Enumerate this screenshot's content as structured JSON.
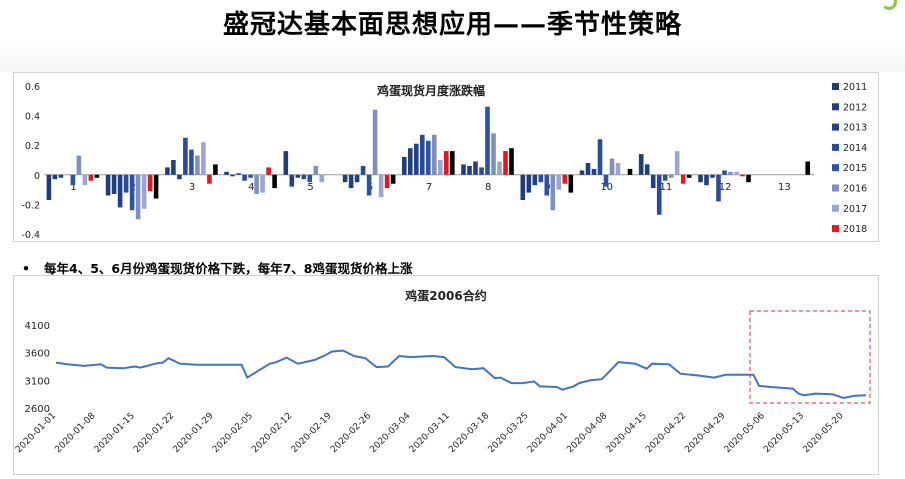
{
  "page": {
    "title": "盛冠达基本面思想应用——季节性策略",
    "bullet": "每年4、5、6月份鸡蛋现货价格下跌，每年7、8鸡蛋现货价格上涨"
  },
  "chart_data": [
    {
      "type": "bar",
      "title": "鸡蛋现货月度涨跌幅",
      "categories": [
        "1",
        "2",
        "3",
        "4",
        "5",
        "6",
        "7",
        "8",
        "9",
        "10",
        "11",
        "12",
        "13"
      ],
      "ylim": [
        -0.4,
        0.6
      ],
      "yticks": [
        "-0.4",
        "-0.2",
        "0",
        "0.2",
        "0.4",
        "0.6"
      ],
      "legend_position": "right",
      "series": [
        {
          "name": "2011",
          "color": "#1f3d7a",
          "values": [
            -0.17,
            -0.14,
            0.05,
            0.02,
            0.16,
            -0.05,
            0.12,
            0.07,
            -0.17,
            0.03,
            0.14,
            -0.05,
            null
          ]
        },
        {
          "name": "2012",
          "color": "#203f80",
          "values": [
            -0.03,
            -0.13,
            0.1,
            -0.01,
            -0.08,
            -0.09,
            0.18,
            0.06,
            -0.12,
            0.08,
            0.07,
            -0.07,
            null
          ]
        },
        {
          "name": "2013",
          "color": "#223f8a",
          "values": [
            -0.02,
            -0.22,
            -0.03,
            0.01,
            -0.02,
            -0.05,
            0.21,
            0.09,
            -0.07,
            0.04,
            -0.09,
            -0.02,
            null
          ]
        },
        {
          "name": "2014",
          "color": "#2a4a9a",
          "values": [
            null,
            -0.12,
            0.25,
            -0.04,
            -0.03,
            0.06,
            0.27,
            0.05,
            -0.05,
            0.24,
            -0.27,
            -0.18,
            null
          ]
        },
        {
          "name": "2015",
          "color": "#2b52a5",
          "values": [
            -0.07,
            -0.24,
            0.17,
            -0.02,
            -0.05,
            -0.14,
            0.23,
            0.46,
            -0.14,
            -0.08,
            -0.04,
            0.03,
            null
          ]
        },
        {
          "name": "2016",
          "color": "#7f8fc0",
          "values": [
            0.13,
            -0.3,
            0.13,
            -0.13,
            0.06,
            0.44,
            0.27,
            0.28,
            -0.24,
            0.11,
            -0.02,
            0.02,
            null
          ]
        },
        {
          "name": "2017",
          "color": "#9aa6cf",
          "values": [
            -0.07,
            -0.23,
            0.22,
            -0.12,
            -0.05,
            -0.15,
            0.1,
            0.09,
            -0.1,
            0.08,
            0.16,
            0.02,
            null
          ]
        },
        {
          "name": "2018",
          "color": "#e8161b",
          "values": [
            -0.04,
            -0.11,
            -0.06,
            0.05,
            null,
            -0.09,
            0.16,
            0.16,
            -0.06,
            null,
            -0.06,
            -0.01,
            null
          ]
        },
        {
          "name": "",
          "color": "#000000",
          "values": [
            -0.02,
            -0.16,
            0.07,
            -0.09,
            null,
            -0.06,
            0.16,
            0.18,
            -0.12,
            0.04,
            -0.02,
            -0.05,
            0.09
          ]
        }
      ]
    },
    {
      "type": "line",
      "title": "鸡蛋2006合约",
      "color": "#4472c4",
      "ylim": [
        2600,
        4100
      ],
      "yticks": [
        "2600",
        "3100",
        "3600",
        "4100"
      ],
      "xticks": [
        "2020-01-01",
        "2020-01-08",
        "2020-01-15",
        "2020-01-22",
        "2020-01-29",
        "2020-02-05",
        "2020-02-12",
        "2020-02-19",
        "2020-02-26",
        "2020-03-04",
        "2020-03-11",
        "2020-03-18",
        "2020-03-25",
        "2020-04-01",
        "2020-04-08",
        "2020-04-15",
        "2020-04-22",
        "2020-04-29",
        "2020-05-06",
        "2020-05-13",
        "2020-05-20"
      ],
      "x_start": "2020-01-01",
      "x_end": "2020-05-24",
      "points": [
        [
          "2020-01-01",
          3420
        ],
        [
          "2020-01-03",
          3390
        ],
        [
          "2020-01-06",
          3360
        ],
        [
          "2020-01-09",
          3390
        ],
        [
          "2020-01-10",
          3330
        ],
        [
          "2020-01-13",
          3320
        ],
        [
          "2020-01-15",
          3350
        ],
        [
          "2020-01-16",
          3330
        ],
        [
          "2020-01-19",
          3410
        ],
        [
          "2020-01-20",
          3420
        ],
        [
          "2020-01-21",
          3500
        ],
        [
          "2020-01-23",
          3400
        ],
        [
          "2020-01-26",
          3380
        ],
        [
          "2020-02-03",
          3380
        ],
        [
          "2020-02-04",
          3150
        ],
        [
          "2020-02-08",
          3400
        ],
        [
          "2020-02-09",
          3420
        ],
        [
          "2020-02-11",
          3510
        ],
        [
          "2020-02-13",
          3400
        ],
        [
          "2020-02-16",
          3470
        ],
        [
          "2020-02-18",
          3560
        ],
        [
          "2020-02-19",
          3620
        ],
        [
          "2020-02-21",
          3640
        ],
        [
          "2020-02-23",
          3540
        ],
        [
          "2020-02-25",
          3500
        ],
        [
          "2020-02-27",
          3340
        ],
        [
          "2020-02-29",
          3350
        ],
        [
          "2020-03-02",
          3540
        ],
        [
          "2020-03-04",
          3520
        ],
        [
          "2020-03-08",
          3540
        ],
        [
          "2020-03-10",
          3520
        ],
        [
          "2020-03-12",
          3340
        ],
        [
          "2020-03-15",
          3300
        ],
        [
          "2020-03-17",
          3320
        ],
        [
          "2020-03-19",
          3140
        ],
        [
          "2020-03-20",
          3150
        ],
        [
          "2020-03-22",
          3050
        ],
        [
          "2020-03-24",
          3050
        ],
        [
          "2020-03-26",
          3080
        ],
        [
          "2020-03-27",
          2990
        ],
        [
          "2020-03-30",
          2980
        ],
        [
          "2020-03-31",
          2930
        ],
        [
          "2020-04-02",
          2990
        ],
        [
          "2020-04-03",
          3050
        ],
        [
          "2020-04-05",
          3100
        ],
        [
          "2020-04-07",
          3120
        ],
        [
          "2020-04-08",
          3220
        ],
        [
          "2020-04-10",
          3430
        ],
        [
          "2020-04-13",
          3400
        ],
        [
          "2020-04-15",
          3310
        ],
        [
          "2020-04-16",
          3400
        ],
        [
          "2020-04-19",
          3390
        ],
        [
          "2020-04-21",
          3220
        ],
        [
          "2020-04-24",
          3190
        ],
        [
          "2020-04-27",
          3150
        ],
        [
          "2020-04-29",
          3200
        ],
        [
          "2020-05-04",
          3200
        ],
        [
          "2020-05-05",
          3000
        ],
        [
          "2020-05-07",
          2980
        ],
        [
          "2020-05-11",
          2950
        ],
        [
          "2020-05-12",
          2860
        ],
        [
          "2020-05-13",
          2830
        ],
        [
          "2020-05-15",
          2860
        ],
        [
          "2020-05-18",
          2850
        ],
        [
          "2020-05-20",
          2780
        ],
        [
          "2020-05-22",
          2820
        ],
        [
          "2020-05-24",
          2830
        ]
      ]
    }
  ]
}
